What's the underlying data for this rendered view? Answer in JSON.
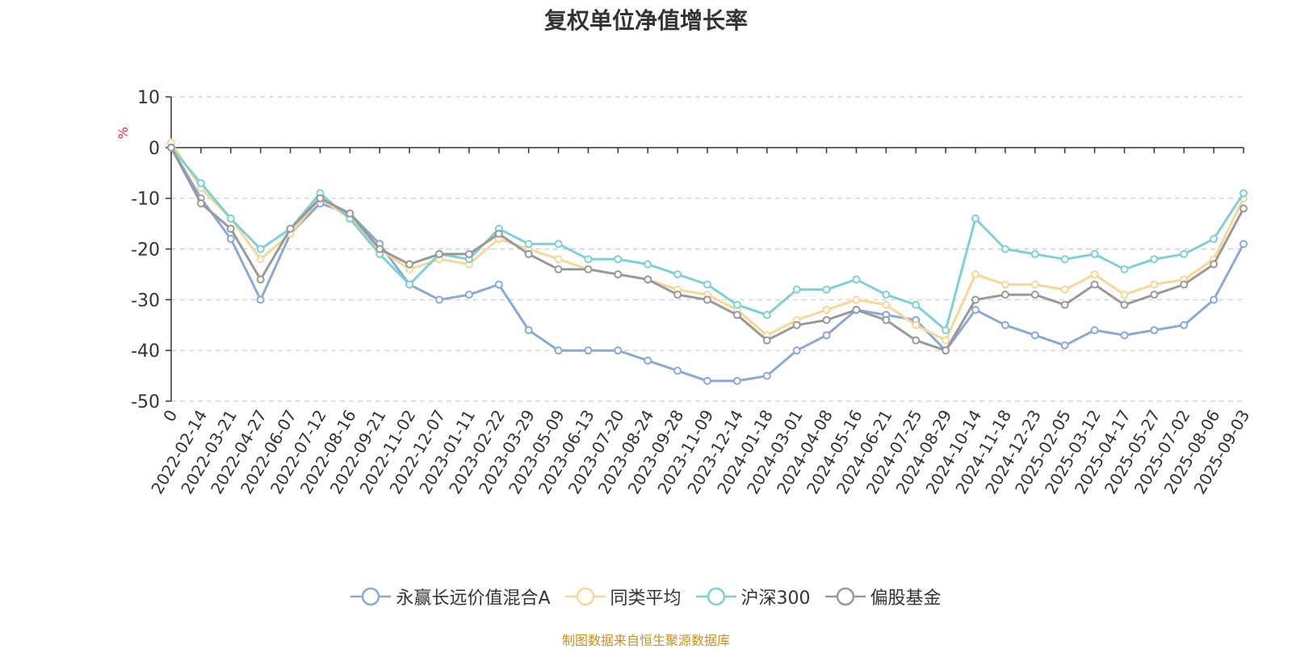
{
  "source_note": "制图数据来自恒生聚源数据库",
  "chart_data": {
    "type": "line",
    "title": "复权单位净值增长率",
    "ylabel": "%",
    "xlabel": "",
    "ylim": [
      -50,
      10
    ],
    "yticks": [
      10,
      0,
      -10,
      -20,
      -30,
      -40,
      -50
    ],
    "grid": true,
    "legend_position": "bottom",
    "x": [
      "0",
      "2022-02-14",
      "2022-03-21",
      "2022-04-27",
      "2022-06-07",
      "2022-07-12",
      "2022-08-16",
      "2022-09-21",
      "2022-11-02",
      "2022-12-07",
      "2023-01-11",
      "2023-02-22",
      "2023-03-29",
      "2023-05-09",
      "2023-06-13",
      "2023-07-20",
      "2023-08-24",
      "2023-09-28",
      "2023-11-09",
      "2023-12-14",
      "2024-01-18",
      "2024-03-01",
      "2024-04-08",
      "2024-05-16",
      "2024-06-21",
      "2024-07-25",
      "2024-08-29",
      "2024-10-14",
      "2024-11-18",
      "2024-12-23",
      "2025-02-05",
      "2025-03-12",
      "2025-04-17",
      "2025-05-27",
      "2025-07-02",
      "2025-08-06",
      "2025-09-03"
    ],
    "series": [
      {
        "name": "永赢长远价值混合A",
        "color": "#8aa8d8",
        "values": [
          0,
          -10,
          -18,
          -30,
          -17,
          -11,
          -13,
          -19,
          -27,
          -30,
          -29,
          -27,
          -36,
          -40,
          -40,
          -40,
          -42,
          -44,
          -46,
          -46,
          -45,
          -40,
          -37,
          -32,
          -33,
          -34,
          -40,
          -32,
          -35,
          -37,
          -39,
          -36,
          -37,
          -36,
          -35,
          -30,
          -19
        ]
      },
      {
        "name": "同类平均",
        "color": "#fad695",
        "values": [
          1,
          -8,
          -14,
          -22,
          -17,
          -10,
          -14,
          -20,
          -24,
          -22,
          -23,
          -18,
          -20,
          -22,
          -24,
          -25,
          -26,
          -28,
          -29,
          -32,
          -37,
          -34,
          -32,
          -30,
          -31,
          -35,
          -38,
          -25,
          -27,
          -27,
          -28,
          -25,
          -29,
          -27,
          -26,
          -22,
          -10
        ]
      },
      {
        "name": "沪深300",
        "color": "#7dd1d4",
        "values": [
          0,
          -7,
          -14,
          -20,
          -16,
          -9,
          -14,
          -21,
          -27,
          -21,
          -22,
          -16,
          -19,
          -19,
          -22,
          -22,
          -23,
          -25,
          -27,
          -31,
          -33,
          -28,
          -28,
          -26,
          -29,
          -31,
          -36,
          -14,
          -20,
          -21,
          -22,
          -21,
          -24,
          -22,
          -21,
          -18,
          -9
        ]
      },
      {
        "name": "偏股基金",
        "color": "#999999",
        "values": [
          0,
          -11,
          -16,
          -26,
          -16,
          -10,
          -13,
          -20,
          -23,
          -21,
          -21,
          -17,
          -21,
          -24,
          -24,
          -25,
          -26,
          -29,
          -30,
          -33,
          -38,
          -35,
          -34,
          -32,
          -34,
          -38,
          -40,
          -30,
          -29,
          -29,
          -31,
          -27,
          -31,
          -29,
          -27,
          -23,
          -12
        ]
      }
    ]
  }
}
